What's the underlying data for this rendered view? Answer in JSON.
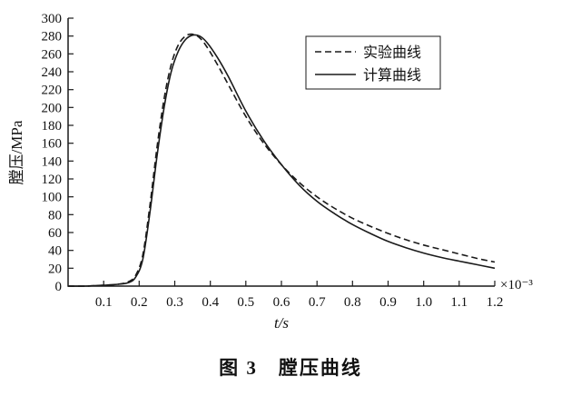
{
  "caption": "图 3　膛压曲线",
  "colors": {
    "line": "#1a1a1a",
    "background": "#ffffff",
    "text": "#111111"
  },
  "chart_data": {
    "type": "line",
    "title": "",
    "xlabel": "t/s",
    "x_multiplier_label": "×10⁻³",
    "ylabel": "膛压/MPa",
    "xlim": [
      0,
      1.2
    ],
    "ylim": [
      0,
      300
    ],
    "x_ticks": [
      0.1,
      0.2,
      0.3,
      0.4,
      0.5,
      0.6,
      0.7,
      0.8,
      0.9,
      1.0,
      1.1,
      1.2
    ],
    "y_ticks": [
      0,
      20,
      40,
      60,
      80,
      100,
      120,
      140,
      160,
      180,
      200,
      220,
      240,
      260,
      280,
      300
    ],
    "grid": false,
    "legend_position": "upper right",
    "series": [
      {
        "name": "实验曲线",
        "style": "dashed",
        "x": [
          0,
          0.05,
          0.1,
          0.14,
          0.17,
          0.19,
          0.21,
          0.23,
          0.25,
          0.27,
          0.29,
          0.31,
          0.33,
          0.35,
          0.37,
          0.39,
          0.42,
          0.45,
          0.5,
          0.55,
          0.6,
          0.65,
          0.7,
          0.75,
          0.8,
          0.85,
          0.9,
          0.95,
          1.0,
          1.05,
          1.1,
          1.15,
          1.2
        ],
        "y": [
          0,
          0,
          1,
          2,
          5,
          12,
          35,
          90,
          155,
          210,
          248,
          270,
          280,
          282,
          278,
          268,
          248,
          226,
          190,
          160,
          136,
          116,
          100,
          87,
          76,
          67,
          59,
          52,
          46,
          41,
          36,
          31,
          27
        ]
      },
      {
        "name": "计算曲线",
        "style": "solid",
        "x": [
          0,
          0.05,
          0.1,
          0.14,
          0.17,
          0.19,
          0.21,
          0.23,
          0.25,
          0.27,
          0.29,
          0.31,
          0.33,
          0.35,
          0.37,
          0.39,
          0.42,
          0.45,
          0.5,
          0.55,
          0.6,
          0.65,
          0.7,
          0.75,
          0.8,
          0.85,
          0.9,
          0.95,
          1.0,
          1.05,
          1.1,
          1.15,
          1.2
        ],
        "y": [
          0,
          0,
          1,
          2,
          4,
          10,
          30,
          82,
          145,
          200,
          240,
          263,
          276,
          281,
          280,
          273,
          256,
          235,
          196,
          163,
          136,
          113,
          95,
          81,
          69,
          59,
          50,
          43,
          37,
          32,
          28,
          24,
          20
        ]
      }
    ]
  }
}
